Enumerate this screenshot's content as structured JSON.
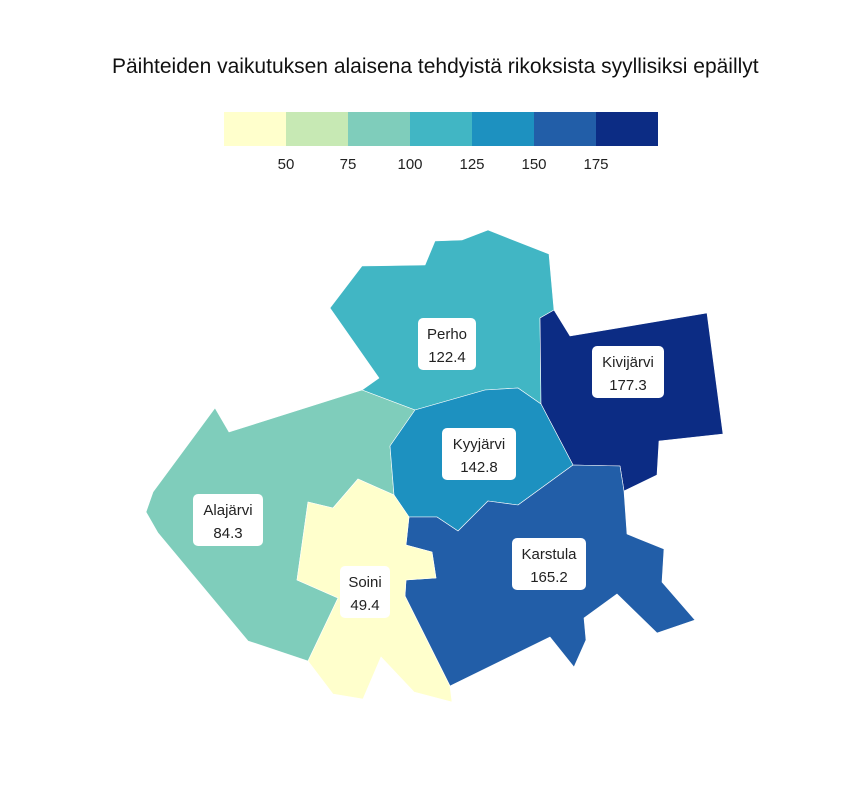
{
  "title": "Päihteiden vaikutuksen alaisena tehdyistä rikoksista syyllisiksi epäillyt",
  "legend": {
    "colors": [
      "#ffffcc",
      "#c7e9b4",
      "#7fcdbb",
      "#41b6c4",
      "#1d91c0",
      "#225ea8",
      "#0c2c84"
    ],
    "breaks": [
      50,
      75,
      100,
      125,
      150,
      175
    ],
    "tick_labels": [
      "50",
      "75",
      "100",
      "125",
      "150",
      "175"
    ]
  },
  "regions": [
    {
      "name": "Perho",
      "value": 122.4,
      "value_label": "122.4",
      "color": "#41b6c4"
    },
    {
      "name": "Kivijärvi",
      "value": 177.3,
      "value_label": "177.3",
      "color": "#0c2c84"
    },
    {
      "name": "Alajärvi",
      "value": 84.3,
      "value_label": "84.3",
      "color": "#7fcdbb"
    },
    {
      "name": "Kyyjärvi",
      "value": 142.8,
      "value_label": "142.8",
      "color": "#1d91c0"
    },
    {
      "name": "Karstula",
      "value": 165.2,
      "value_label": "165.2",
      "color": "#225ea8"
    },
    {
      "name": "Soini",
      "value": 49.4,
      "value_label": "49.4",
      "color": "#ffffcc"
    }
  ]
}
